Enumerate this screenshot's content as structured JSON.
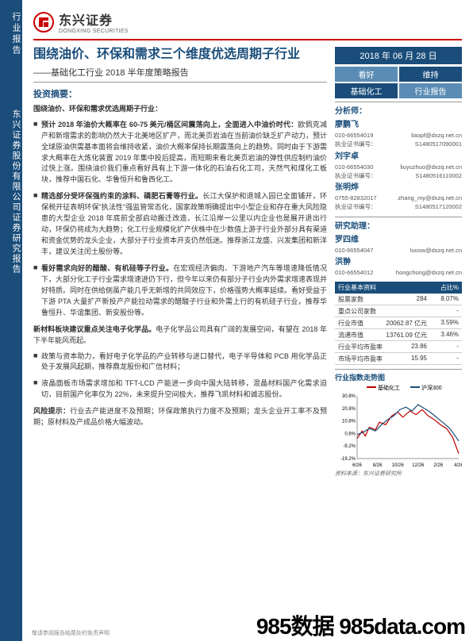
{
  "sidebar": {
    "label1": "行业报告",
    "label2": "东兴证券股份有限公司证券研究报告"
  },
  "header": {
    "company_cn": "东兴证券",
    "company_en": "DONGXING SECURITIES"
  },
  "title": "围绕油价、环保和需求三个维度优选周期子行业",
  "subtitle": "——基础化工行业 2018 半年度策略报告",
  "section_label": "投资摘要：",
  "intro": "围绕油价、环保和需求优选周期子行业：",
  "bullets": [
    {
      "text": "预计 2018 年油价大概率在 60-75 美元/桶区间震荡向上，全面进入中油价时代：",
      "rest": "欧佩克减产和新增需求的影响仍然大于北美地区扩产，而北美页岩油在当前油价缺乏扩产动力，预计全球原油供需基本面将会维持收紧，油价大概率保持长期震荡向上的趋势。同时由于下游需求大概率在大炼化装置 2019 年集中投后提高，而短期来看北美页岩油的弹性供应制约油价过快上涨。围绕油价我们重点看好具有上下游一体化的石油石化工司，天然气和煤化工板块，推荐中国石化、华鲁恒升和鲁西化工。"
    },
    {
      "text": "精选部分受环保强约束的涂料、磷肥石膏等行业。",
      "rest": "长江大保护和退城入园已全面铺开，环保税开征表明环保\"执法性\"强监管常态化，国家政策明确提出中小型企业和存在重大风险隐患的大型企业 2018 年底前全部启动搬迁改造，长江沿岸一公里以内企业也是展开退出行动，环保仍将成为大趋势；化工行业规模化扩产伏株中在少数值上游子行业外部分具有渠道和资金优势的龙头企业，大部分子行业资本开支仍然低迷。推荐浙江龙盛、兴发集团和新洋丰，建议关注闰土股份等。"
    },
    {
      "text": "看好需求向好的醋酸、有机硅等子行业。",
      "rest": "在宏观经济偏肉、下游地产汽车等增速降低情况下，大部分化工子行业需求增速进仍下行，但今年以来仍有部分子行业内外需求增速表现并好特质。同时在供给侧虽产能几乎无新增的共同效应下，价格强势大概率延续。看好受益于下游 PTA 大量扩产新投产产能拉动需求的醋酸子行业和外需上行的有机硅子行业，推荐华鲁恒升、华谊集团、新安股份等。"
    }
  ],
  "new_material_title": "新材料板块建议重点关注电子化学品。",
  "new_material_text": "电子化学品公司具有广阔的发展空间，有望在 2018 年下半年能风而起。",
  "material_bullets": [
    "政策与资本助力，看好电子化学品的产业转移与进口替代，电子半导体和 PCB 用化学品正处于发展风起期，推荐鼎龙股份和广信材料；",
    "液晶面板市场需求增加和 TFT-LCD 产能进一步向中国大陆转移，混晶材料国产化需求迫切，目前国产化率仅为 22%，未来提升空间极大，推荐飞凯材料和诚志股份。"
  ],
  "risk_label": "风险提示：",
  "risk_text": "行业去产能进度不及预期；环保政策执行力度不及预期；龙头企业开工率不及预期；原材料及产成品价格大幅波动。",
  "date": "2018 年 06 月 28 日",
  "rating": {
    "r1a": "看好",
    "r1b": "维持",
    "r2a": "基础化工",
    "r2b": "行业报告"
  },
  "analysts_label": "分析师：",
  "analysts": [
    {
      "name": "廖鹏飞",
      "phone": "010-66554019",
      "email": "liaopf@dxzq.net.cn",
      "cert_label": "执业证书编号：",
      "cert": "S1480517090001"
    },
    {
      "name": "刘宇卓",
      "phone": "010-66554030",
      "email": "liuyuzhuo@dxzq.net.cn",
      "cert_label": "执业证书编号：",
      "cert": "S1480516110002"
    },
    {
      "name": "张明烨",
      "phone": "0755-82832017",
      "email": "zhang_my@dxzq.net.cn",
      "cert_label": "执业证书编号：",
      "cert": "S1480517120002"
    }
  ],
  "assistants_label": "研究助理：",
  "assistants": [
    {
      "name": "罗四维",
      "phone": "010-66554047",
      "email": "luosw@dxzq.net.cn"
    },
    {
      "name": "洪翀",
      "phone": "010-66554012",
      "email": "hongchong@dxzq.net.cn"
    }
  ],
  "table": {
    "title": "行业基本资料",
    "col_header": "占比%",
    "rows": [
      {
        "label": "股票家数",
        "v1": "284",
        "v2": "8.07%"
      },
      {
        "label": "重点公司家数",
        "v1": "",
        "v2": "-"
      },
      {
        "label": "行业市值",
        "v1": "20062.87 亿元",
        "v2": "3.59%"
      },
      {
        "label": "流通市值",
        "v1": "13761.09 亿元",
        "v2": "3.46%"
      },
      {
        "label": "行业平均市盈率",
        "v1": "23.86",
        "v2": "-"
      },
      {
        "label": "市场平均市盈率",
        "v1": "15.95",
        "v2": "-"
      }
    ]
  },
  "chart": {
    "title": "行业指数走势图",
    "legend": [
      "基础化工",
      "沪深300"
    ],
    "legend_colors": [
      "#c00000",
      "#1a4d7a"
    ],
    "y_labels": [
      "30.8%",
      "20.8%",
      "10.8%",
      "0.8%",
      "-9.2%",
      "-19.2%"
    ],
    "x_labels": [
      "6/26",
      "8/26",
      "10/26",
      "12/26",
      "2/26",
      "4/26"
    ],
    "source": "资料来源：东兴证券研究所"
  },
  "disclaimer": "敬请参阅报告结尾处的免责声明",
  "watermark": "985数据 985data.com"
}
